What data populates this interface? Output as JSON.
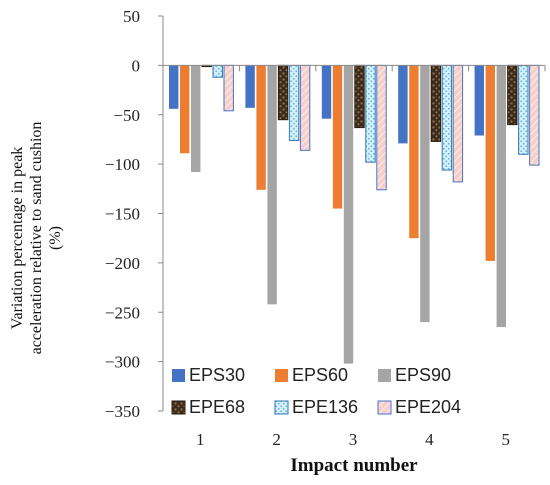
{
  "chart_data": {
    "type": "bar",
    "title": "",
    "xlabel": "Impact number",
    "ylabel_lines": [
      "Variation percentage  in peak",
      "acceleration relative to sand cushion",
      "(%)"
    ],
    "categories": [
      "1",
      "2",
      "3",
      "4",
      "5"
    ],
    "ylim": [
      -350,
      50
    ],
    "yticks": [
      50,
      0,
      -50,
      -100,
      -150,
      -200,
      -250,
      -300,
      -350
    ],
    "grid": false,
    "legend_position": "bottom-inside",
    "series": [
      {
        "name": "EPS30",
        "color": "#4472c4",
        "pattern": "solid",
        "values": [
          -44,
          -43,
          -54,
          -79,
          -71
        ]
      },
      {
        "name": "EPS60",
        "color": "#ed7d31",
        "pattern": "solid",
        "values": [
          -89,
          -126,
          -145,
          -175,
          -198
        ]
      },
      {
        "name": "EPS90",
        "color": "#a5a5a5",
        "pattern": "solid",
        "values": [
          -108,
          -242,
          -302,
          -260,
          -265
        ]
      },
      {
        "name": "EPE68",
        "color": "#6b4a2e",
        "pattern": "texture",
        "values": [
          0,
          -55,
          -63,
          -77,
          -60
        ]
      },
      {
        "name": "EPE136",
        "color": "#bfe6f5",
        "pattern": "dots",
        "values": [
          -12,
          -76,
          -98,
          -106,
          -90
        ]
      },
      {
        "name": "EPE204",
        "color": "#f6c9c4",
        "pattern": "hatch",
        "values": [
          -46,
          -86,
          -126,
          -118,
          -101
        ]
      }
    ]
  }
}
